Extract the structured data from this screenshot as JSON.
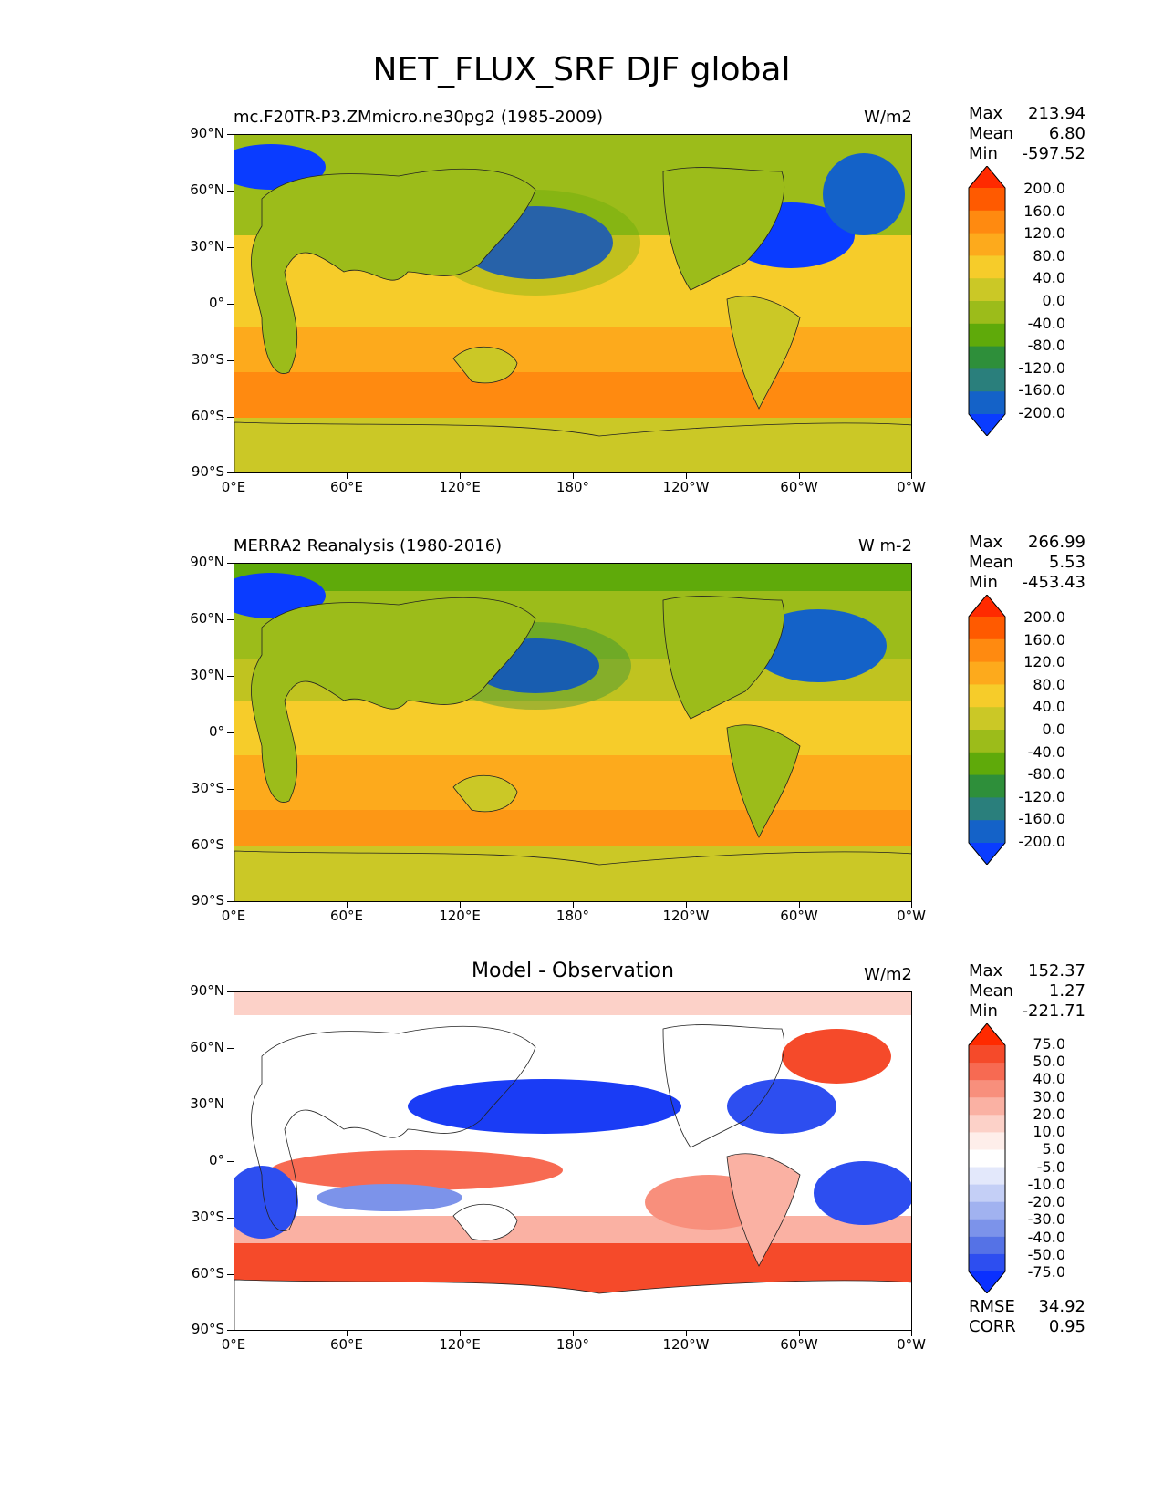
{
  "figure_title": "NET_FLUX_SRF DJF global",
  "axes": {
    "y_ticks": [
      "90°N",
      "60°N",
      "30°N",
      "0°",
      "30°S",
      "60°S",
      "90°S"
    ],
    "x_ticks": [
      "0°E",
      "60°E",
      "120°E",
      "180°",
      "120°W",
      "60°W",
      "0°W"
    ]
  },
  "panels": [
    {
      "title": "mc.F20TR-P3.ZMmicro.ne30pg2 (1985-2009)",
      "units": "W/m2",
      "stats": {
        "max_label": "Max",
        "max": "213.94",
        "mean_label": "Mean",
        "mean": "6.80",
        "min_label": "Min",
        "min": "-597.52"
      },
      "colorbar_labels": [
        "200.0",
        "160.0",
        "120.0",
        "80.0",
        "40.0",
        "0.0",
        "-40.0",
        "-80.0",
        "-120.0",
        "-160.0",
        "-200.0"
      ],
      "colorbar_colors": [
        "#ff2a00",
        "#ff5a00",
        "#ff8a10",
        "#fdaa1c",
        "#f6cc2a",
        "#cbc826",
        "#9cbc1a",
        "#5faa0a",
        "#2e8f3a",
        "#2a7f7c",
        "#1462c8",
        "#0a3cff"
      ]
    },
    {
      "title": "MERRA2 Reanalysis (1980-2016)",
      "units": "W m-2",
      "stats": {
        "max_label": "Max",
        "max": "266.99",
        "mean_label": "Mean",
        "mean": "5.53",
        "min_label": "Min",
        "min": "-453.43"
      },
      "colorbar_labels": [
        "200.0",
        "160.0",
        "120.0",
        "80.0",
        "40.0",
        "0.0",
        "-40.0",
        "-80.0",
        "-120.0",
        "-160.0",
        "-200.0"
      ],
      "colorbar_colors": [
        "#ff2a00",
        "#ff5a00",
        "#ff8a10",
        "#fdaa1c",
        "#f6cc2a",
        "#cbc826",
        "#9cbc1a",
        "#5faa0a",
        "#2e8f3a",
        "#2a7f7c",
        "#1462c8",
        "#0a3cff"
      ]
    },
    {
      "title": "Model - Observation",
      "units": "W/m2",
      "stats": {
        "max_label": "Max",
        "max": "152.37",
        "mean_label": "Mean",
        "mean": "1.27",
        "min_label": "Min",
        "min": "-221.71"
      },
      "colorbar_labels": [
        "75.0",
        "50.0",
        "40.0",
        "30.0",
        "20.0",
        "10.0",
        "5.0",
        "-5.0",
        "-10.0",
        "-20.0",
        "-30.0",
        "-40.0",
        "-50.0",
        "-75.0"
      ],
      "colorbar_colors": [
        "#ff2a00",
        "#f54a2a",
        "#f76a52",
        "#f88f7c",
        "#fab1a3",
        "#fcd1c8",
        "#feeeea",
        "#ffffff",
        "#e3e8fb",
        "#c4cff6",
        "#a1b2f0",
        "#7c93ea",
        "#5572e6",
        "#2d4ef0",
        "#0a30ff"
      ],
      "rmse_label": "RMSE",
      "rmse": "34.92",
      "corr_label": "CORR",
      "corr": "0.95"
    }
  ]
}
